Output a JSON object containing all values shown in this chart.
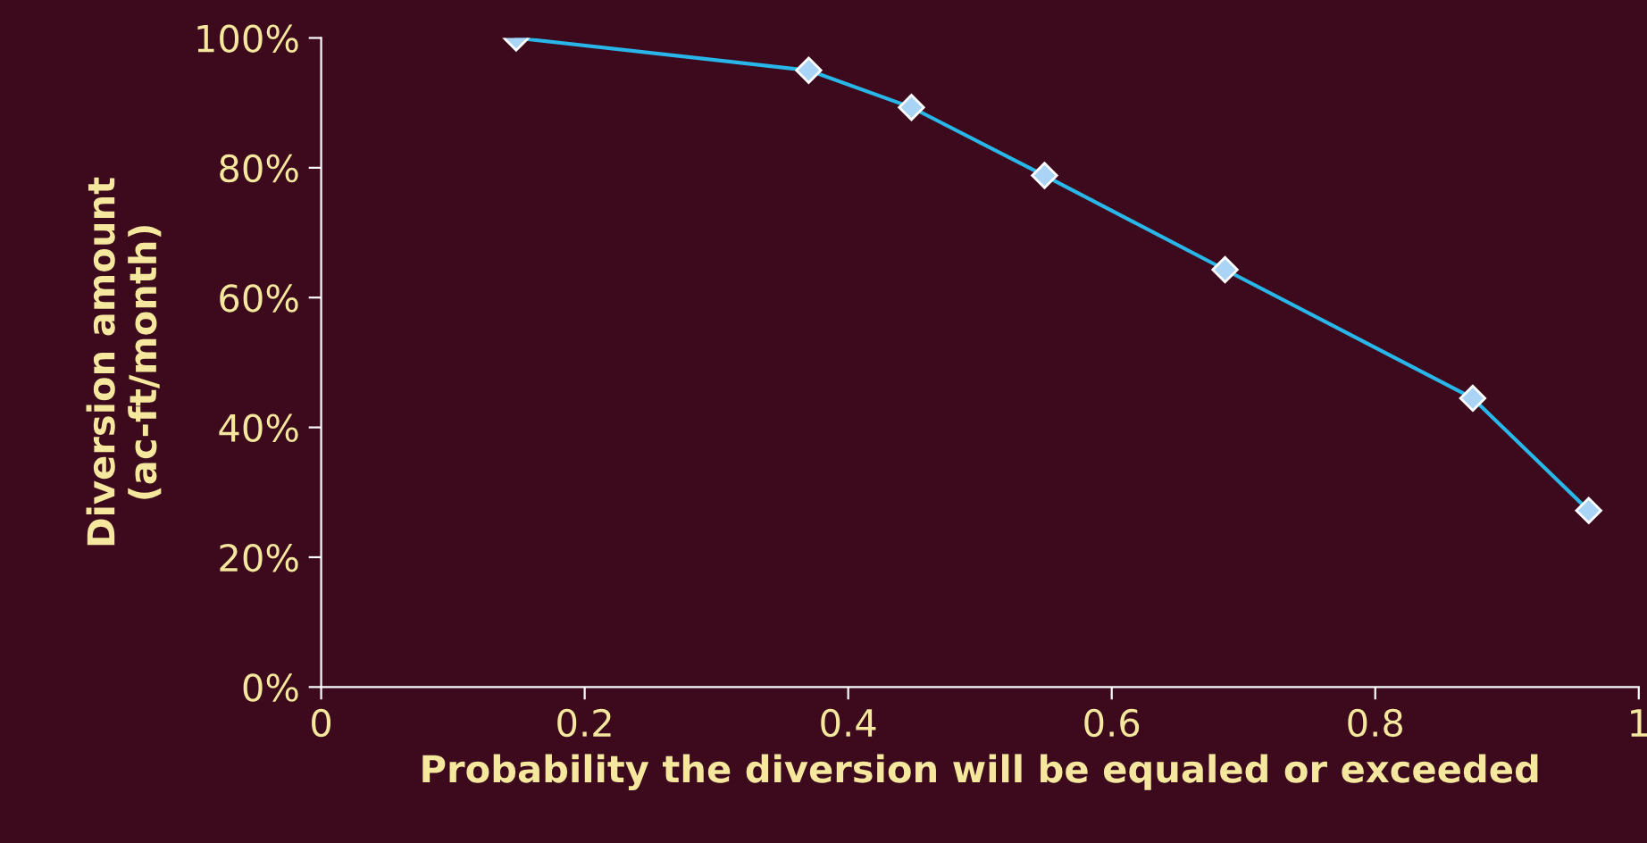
{
  "chart_data": {
    "type": "line",
    "xlabel": "Probability the diversion will be equaled or exceeded",
    "ylabel": "Diversion amount\n(ac-ft/month)",
    "series": [
      {
        "color": "#29b6e8",
        "x": [
          0.148,
          0.37,
          0.448,
          0.549,
          0.686,
          0.874,
          0.962
        ],
        "values": [
          100,
          95,
          89.3,
          78.8,
          64.3,
          44.5,
          27.2
        ]
      }
    ],
    "marker": "diamond",
    "line_style": "solid",
    "xlim": [
      0,
      1
    ],
    "xticks": [
      0,
      0.2,
      0.4,
      0.6,
      0.8,
      1
    ],
    "ylim": [
      0,
      100
    ],
    "yticks": [
      {
        "value": 0,
        "label": "0%"
      },
      {
        "value": 20,
        "label": "20%"
      },
      {
        "value": 40,
        "label": "40%"
      },
      {
        "value": 60,
        "label": "60%"
      },
      {
        "value": 80,
        "label": "80%"
      },
      {
        "value": 100,
        "label": "100%"
      }
    ],
    "grid": false,
    "legend": false
  }
}
